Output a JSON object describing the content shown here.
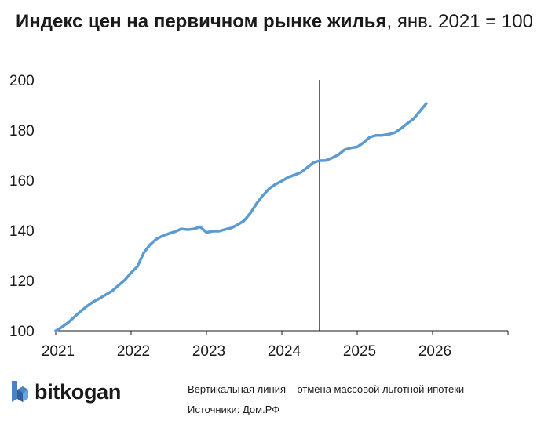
{
  "title": {
    "bold": "Индекс цен на первичном рынке жилья",
    "normal": ", янв. 2021 = 100"
  },
  "chart_data": {
    "type": "line",
    "title": "Индекс цен на первичном рынке жилья, янв. 2021 = 100",
    "xlim": [
      2021.0,
      2027.0
    ],
    "ylim": [
      100,
      200
    ],
    "x_ticks": [
      "2021",
      "2022",
      "2023",
      "2024",
      "2025",
      "2026"
    ],
    "x_tick_values": [
      2021,
      2022,
      2023,
      2024,
      2025,
      2026
    ],
    "y_ticks": [
      "100",
      "120",
      "140",
      "160",
      "180",
      "200"
    ],
    "y_tick_values": [
      100,
      120,
      140,
      160,
      180,
      200
    ],
    "line_color": "#5b9bd1",
    "vline_x": 2024.5,
    "vline_color": "#000000",
    "grid": false,
    "series": [
      {
        "x": [
          2021.0,
          2021.083,
          2021.167,
          2021.25,
          2021.333,
          2021.417,
          2021.5,
          2021.583,
          2021.667,
          2021.75,
          2021.833,
          2021.917,
          2022.0,
          2022.083,
          2022.167,
          2022.25,
          2022.333,
          2022.417,
          2022.5,
          2022.583,
          2022.667,
          2022.75,
          2022.833,
          2022.917,
          2023.0,
          2023.083,
          2023.167,
          2023.25,
          2023.333,
          2023.417,
          2023.5,
          2023.583,
          2023.667,
          2023.75,
          2023.833,
          2023.917,
          2024.0,
          2024.083,
          2024.167,
          2024.25,
          2024.333,
          2024.417,
          2024.5,
          2024.583,
          2024.667,
          2024.75,
          2024.833,
          2024.917,
          2025.0,
          2025.083,
          2025.167,
          2025.25,
          2025.333,
          2025.417,
          2025.5,
          2025.583,
          2025.667,
          2025.75,
          2025.833,
          2025.917
        ],
        "values": [
          100.0,
          101.5,
          103.3,
          105.6,
          107.8,
          109.8,
          111.6,
          112.9,
          114.4,
          115.9,
          118.1,
          120.2,
          123.1,
          125.6,
          131.0,
          134.3,
          136.5,
          137.8,
          138.7,
          139.5,
          140.6,
          140.3,
          140.6,
          141.4,
          139.2,
          139.7,
          139.7,
          140.4,
          141.0,
          142.3,
          143.9,
          146.9,
          150.8,
          154.0,
          156.7,
          158.4,
          159.7,
          161.2,
          162.1,
          163.1,
          165.0,
          167.0,
          167.8,
          167.9,
          168.9,
          170.2,
          172.2,
          172.9,
          173.3,
          175.0,
          177.2,
          177.9,
          177.9,
          178.3,
          179.0,
          180.7,
          182.7,
          184.6,
          187.6,
          190.6
        ]
      }
    ]
  },
  "footer": {
    "brand": "bitkogan",
    "note": "Вертикальная линия – отмена массовой льготной ипотеки",
    "sources": "Источники: Дом.РФ"
  }
}
